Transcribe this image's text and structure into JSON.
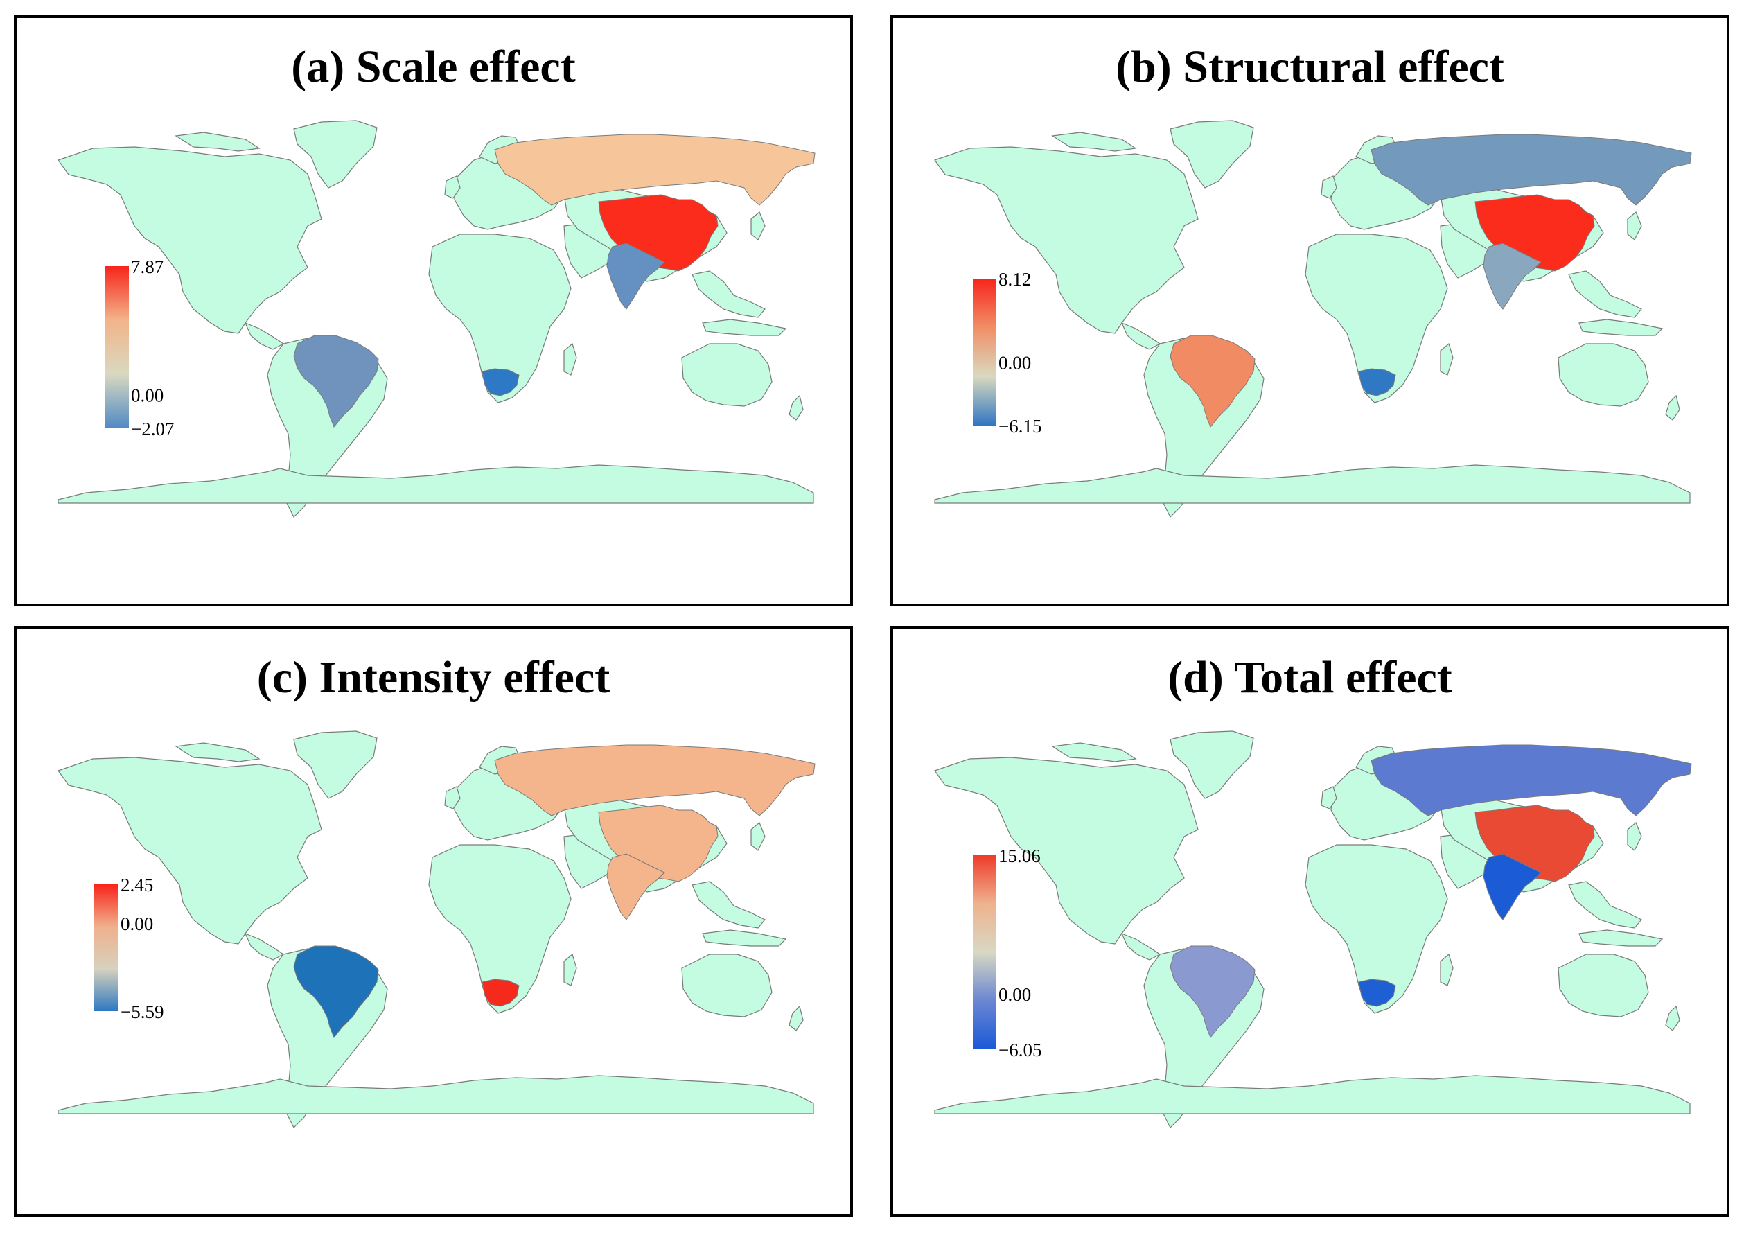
{
  "panels": [
    {
      "id": "a",
      "title": "(a) Scale effect",
      "legend": {
        "max_label": "7.87",
        "zero_label": "0.00",
        "min_label": "−2.07",
        "max": 7.87,
        "min": -2.07,
        "colors": [
          "#f8241b",
          "#f2b48a",
          "#d9d9c0",
          "#4f89c4"
        ]
      },
      "regions": [
        {
          "name": "China",
          "color": "#fb2c1c"
        },
        {
          "name": "Russia",
          "color": "#f6c59a"
        },
        {
          "name": "India",
          "color": "#6490c2"
        },
        {
          "name": "Brazil",
          "color": "#6f93bd"
        },
        {
          "name": "South Africa",
          "color": "#2e79c6"
        }
      ]
    },
    {
      "id": "b",
      "title": "(b) Structural effect",
      "legend": {
        "max_label": "8.12",
        "zero_label": "0.00",
        "min_label": "−6.15",
        "max": 8.12,
        "min": -6.15,
        "colors": [
          "#f8241b",
          "#f08f66",
          "#d9d9c0",
          "#2f76c1"
        ]
      },
      "regions": [
        {
          "name": "China",
          "color": "#fb2c1c"
        },
        {
          "name": "Russia",
          "color": "#7399bd"
        },
        {
          "name": "India",
          "color": "#8aa7c0"
        },
        {
          "name": "Brazil",
          "color": "#f18b64"
        },
        {
          "name": "South Africa",
          "color": "#2e78c4"
        }
      ]
    },
    {
      "id": "c",
      "title": "(c) Intensity effect",
      "legend": {
        "max_label": "2.45",
        "zero_label": "0.00",
        "min_label": "−5.59",
        "max": 2.45,
        "min": -5.59,
        "colors": [
          "#f8241b",
          "#f0b08c",
          "#d6d2be",
          "#2e78c1"
        ]
      },
      "regions": [
        {
          "name": "China",
          "color": "#f4b48c"
        },
        {
          "name": "Russia",
          "color": "#f4b48c"
        },
        {
          "name": "India",
          "color": "#f4b48c"
        },
        {
          "name": "Brazil",
          "color": "#1e72b8"
        },
        {
          "name": "South Africa",
          "color": "#f52a1c"
        }
      ]
    },
    {
      "id": "d",
      "title": "(d) Total effect",
      "legend": {
        "max_label": "15.06",
        "zero_label": "0.00",
        "min_label": "−6.05",
        "max": 15.06,
        "min": -6.05,
        "colors": [
          "#ee3b2a",
          "#efb28e",
          "#d8d8c3",
          "#6b86d2",
          "#1a59d8"
        ]
      },
      "regions": [
        {
          "name": "China",
          "color": "#e84a34"
        },
        {
          "name": "Russia",
          "color": "#5c7ad0"
        },
        {
          "name": "India",
          "color": "#1b5cd6"
        },
        {
          "name": "Brazil",
          "color": "#8a99d0"
        },
        {
          "name": "South Africa",
          "color": "#1f5fd4"
        }
      ]
    }
  ],
  "base_land_color": "#c4fce2",
  "border_color": "#7a7a7a"
}
